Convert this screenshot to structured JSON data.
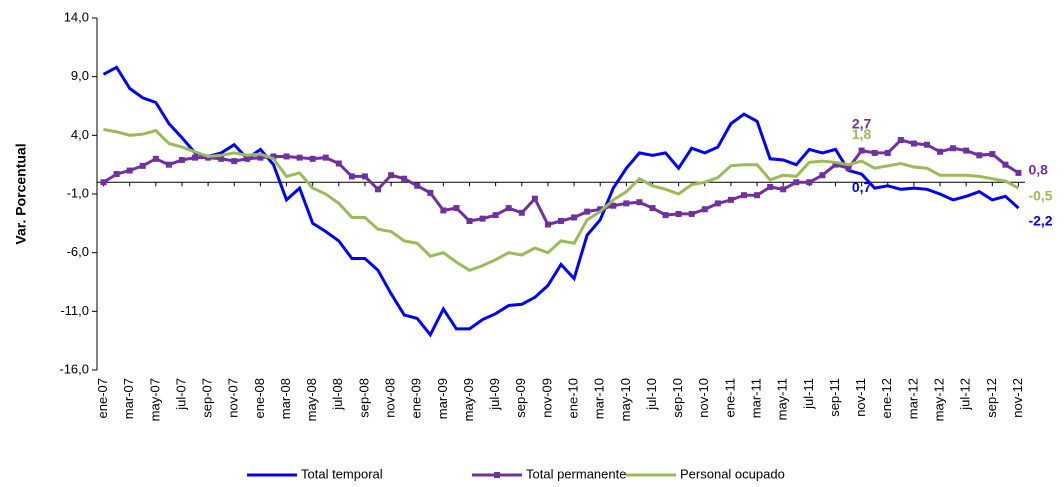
{
  "chart_data": {
    "type": "line",
    "y_label": "Var. Porcentual",
    "categories": [
      "ene-07",
      null,
      "mar-07",
      null,
      "may-07",
      null,
      "jul-07",
      null,
      "sep-07",
      null,
      "nov-07",
      null,
      "ene-08",
      null,
      "mar-08",
      null,
      "may-08",
      null,
      "jul-08",
      null,
      "sep-08",
      null,
      "nov-08",
      null,
      "ene-09",
      null,
      "mar-09",
      null,
      "may-09",
      null,
      "jul-09",
      null,
      "sep-09",
      null,
      "nov-09",
      null,
      "ene-10",
      null,
      "mar-10",
      null,
      "may-10",
      null,
      "jul-10",
      null,
      "sep-10",
      null,
      "nov-10",
      null,
      "ene-11",
      null,
      "mar-11",
      null,
      "may-11",
      null,
      "jul-11",
      null,
      "sep-11",
      null,
      "nov-11",
      null,
      "ene-12",
      null,
      "mar-12",
      null,
      "may-12",
      null,
      "jul-12",
      null,
      "sep-12",
      null,
      "nov-12"
    ],
    "ylim": [
      -16,
      14
    ],
    "yticks": [
      {
        "value": -16,
        "label": "-16,0"
      },
      {
        "value": -11,
        "label": "-11,0"
      },
      {
        "value": -6,
        "label": "-6,0"
      },
      {
        "value": -1,
        "label": "-1,0"
      },
      {
        "value": 4,
        "label": "4,0"
      },
      {
        "value": 9,
        "label": "9,0"
      },
      {
        "value": 14,
        "label": "14,0"
      }
    ],
    "series": [
      {
        "name": "Total temporal",
        "color": "#0000ff",
        "marker": false,
        "values": [
          9.2,
          9.8,
          8,
          7.2,
          6.8,
          5,
          3.8,
          2.5,
          2.2,
          2.5,
          3.2,
          2,
          2.8,
          1.5,
          -1.5,
          -0.5,
          -3.5,
          -4.2,
          -5,
          -6.5,
          -6.5,
          -7.5,
          -9.5,
          -11.3,
          -11.6,
          -13,
          -10.8,
          -12.5,
          -12.5,
          -11.7,
          -11.2,
          -10.5,
          -10.4,
          -9.8,
          -8.8,
          -7,
          -8.2,
          -4.5,
          -3.2,
          -0.5,
          1.2,
          2.5,
          2.3,
          2.5,
          1.2,
          2.9,
          2.5,
          3,
          5,
          5.8,
          5.2,
          2,
          1.9,
          1.5,
          2.8,
          2.5,
          2.8,
          1,
          0.7,
          -0.5,
          -0.3,
          -0.6,
          -0.5,
          -0.6,
          -1,
          -1.5,
          -1.2,
          -0.8,
          -1.5,
          -1.2,
          -2.2
        ],
        "value_labels": [
          null,
          null,
          null,
          null,
          null,
          null,
          null,
          null,
          null,
          null,
          null,
          null,
          null,
          null,
          null,
          null,
          null,
          null,
          null,
          null,
          null,
          null,
          null,
          null,
          null,
          null,
          null,
          null,
          null,
          null,
          null,
          null,
          null,
          null,
          null,
          null,
          null,
          null,
          null,
          null,
          null,
          null,
          null,
          null,
          null,
          null,
          null,
          null,
          null,
          null,
          null,
          null,
          null,
          null,
          null,
          null,
          null,
          null,
          "0,7",
          null,
          null,
          null,
          null,
          null,
          null,
          null,
          null,
          null,
          null,
          null,
          "-2,2"
        ]
      },
      {
        "name": "Total permanente",
        "color": "#7030a0",
        "marker": true,
        "values": [
          0,
          0.7,
          1,
          1.4,
          2,
          1.5,
          1.9,
          2.1,
          2.1,
          2,
          1.8,
          2,
          2.1,
          2.2,
          2.2,
          2.1,
          2,
          2.1,
          1.6,
          0.5,
          0.5,
          -0.6,
          0.6,
          0.3,
          -0.3,
          -0.9,
          -2.4,
          -2.2,
          -3.3,
          -3.1,
          -2.8,
          -2.2,
          -2.6,
          -1.4,
          -3.6,
          -3.3,
          -3,
          -2.5,
          -2.3,
          -2,
          -1.8,
          -1.7,
          -2.2,
          -2.8,
          -2.7,
          -2.7,
          -2.3,
          -1.8,
          -1.5,
          -1.1,
          -1.1,
          -0.4,
          -0.6,
          0,
          0,
          0.6,
          1.5,
          1.2,
          2.7,
          2.5,
          2.5,
          3.6,
          3.3,
          3.2,
          2.6,
          2.9,
          2.7,
          2.3,
          2.4,
          1.5,
          0.8
        ],
        "value_labels": [
          null,
          null,
          null,
          null,
          null,
          null,
          null,
          null,
          null,
          null,
          null,
          null,
          null,
          null,
          null,
          null,
          null,
          null,
          null,
          null,
          null,
          null,
          null,
          null,
          null,
          null,
          null,
          null,
          null,
          null,
          null,
          null,
          null,
          null,
          null,
          null,
          null,
          null,
          null,
          null,
          null,
          null,
          null,
          null,
          null,
          null,
          null,
          null,
          null,
          null,
          null,
          null,
          null,
          null,
          null,
          null,
          null,
          null,
          "2,7",
          null,
          null,
          null,
          null,
          null,
          null,
          null,
          null,
          null,
          null,
          null,
          "0,8"
        ]
      },
      {
        "name": "Personal ocupado",
        "color": "#9bbb59",
        "marker": false,
        "values": [
          4.5,
          4.3,
          4,
          4.1,
          4.4,
          3.3,
          3,
          2.6,
          2.2,
          2.3,
          2.5,
          2.3,
          2.4,
          2,
          0.5,
          0.8,
          -0.5,
          -1,
          -1.8,
          -3,
          -3,
          -4,
          -4.2,
          -5,
          -5.2,
          -6.3,
          -6,
          -6.8,
          -7.5,
          -7.1,
          -6.6,
          -6,
          -6.2,
          -5.6,
          -6,
          -5,
          -5.2,
          -3.2,
          -2.5,
          -1.5,
          -0.8,
          0.3,
          -0.3,
          -0.6,
          -1,
          -0.2,
          0,
          0.4,
          1.4,
          1.5,
          1.5,
          0.2,
          0.6,
          0.5,
          1.7,
          1.8,
          1.7,
          1.5,
          1.8,
          1.2,
          1.4,
          1.6,
          1.3,
          1.2,
          0.6,
          0.6,
          0.6,
          0.5,
          0.3,
          0.1,
          -0.5
        ],
        "value_labels": [
          null,
          null,
          null,
          null,
          null,
          null,
          null,
          null,
          null,
          null,
          null,
          null,
          null,
          null,
          null,
          null,
          null,
          null,
          null,
          null,
          null,
          null,
          null,
          null,
          null,
          null,
          null,
          null,
          null,
          null,
          null,
          null,
          null,
          null,
          null,
          null,
          null,
          null,
          null,
          null,
          null,
          null,
          null,
          null,
          null,
          null,
          null,
          null,
          null,
          null,
          null,
          null,
          null,
          null,
          null,
          null,
          null,
          null,
          "1,8",
          null,
          null,
          null,
          null,
          null,
          null,
          null,
          null,
          null,
          null,
          null,
          "-0,5"
        ]
      }
    ]
  }
}
